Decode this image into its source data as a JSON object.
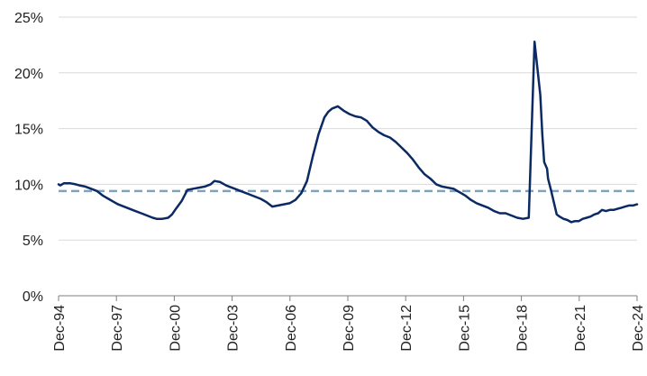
{
  "chart_data": {
    "type": "line",
    "title": "",
    "xlabel": "",
    "ylabel": "",
    "y_unit": "%",
    "ylim": [
      0,
      25
    ],
    "yticks": [
      0,
      5,
      10,
      15,
      20,
      25
    ],
    "y_tick_labels": [
      "0%",
      "5%",
      "10%",
      "15%",
      "20%",
      "25%"
    ],
    "xlim": [
      1994.917,
      2024.917
    ],
    "x_tick_labels": [
      "Dec-94",
      "Dec-97",
      "Dec-00",
      "Dec-03",
      "Dec-06",
      "Dec-09",
      "Dec-12",
      "Dec-15",
      "Dec-18",
      "Dec-21",
      "Dec-24"
    ],
    "x_tick_values": [
      1994.917,
      1997.917,
      2000.917,
      2003.917,
      2006.917,
      2009.917,
      2012.917,
      2015.917,
      2018.917,
      2021.917,
      2024.917
    ],
    "grid": "horizontal",
    "legend": "none",
    "colors": {
      "series": "#0b2a63",
      "reference": "#7fa2bd",
      "grid": "#d9d9d9",
      "axis": "#7f7f7f"
    },
    "series": [
      {
        "x": [
          1994.917,
          1995.0,
          1995.2,
          1995.5,
          1995.8,
          1996.0,
          1996.3,
          1996.6,
          1996.9,
          1997.2,
          1997.5,
          1997.8,
          1998.0,
          1998.3,
          1998.6,
          1998.9,
          1999.2,
          1999.5,
          1999.8,
          2000.0,
          2000.3,
          2000.6,
          2000.8,
          2001.0,
          2001.3,
          2001.6,
          2001.9,
          2002.2,
          2002.5,
          2002.8,
          2003.0,
          2003.3,
          2003.6,
          2003.9,
          2004.2,
          2004.5,
          2004.8,
          2005.1,
          2005.4,
          2005.7,
          2006.0,
          2006.3,
          2006.6,
          2006.9,
          2007.2,
          2007.5,
          2007.8,
          2008.1,
          2008.4,
          2008.7,
          2008.9,
          2009.1,
          2009.4,
          2009.7,
          2010.0,
          2010.3,
          2010.6,
          2010.9,
          2011.2,
          2011.5,
          2011.8,
          2012.1,
          2012.4,
          2012.7,
          2013.0,
          2013.3,
          2013.6,
          2013.9,
          2014.2,
          2014.5,
          2014.8,
          2015.1,
          2015.4,
          2015.7,
          2016.0,
          2016.3,
          2016.6,
          2016.9,
          2017.2,
          2017.5,
          2017.8,
          2018.1,
          2018.4,
          2018.7,
          2019.0,
          2019.3,
          2019.6,
          2019.9,
          2020.0,
          2020.1,
          2020.25,
          2020.3,
          2020.45,
          2020.6,
          2020.75,
          2020.9,
          2021.1,
          2021.3,
          2021.5,
          2021.7,
          2021.9,
          2022.1,
          2022.3,
          2022.5,
          2022.7,
          2022.9,
          2023.1,
          2023.3,
          2023.5,
          2023.7,
          2023.9,
          2024.1,
          2024.3,
          2024.5,
          2024.7,
          2024.917
        ],
        "values": [
          10.0,
          9.9,
          10.1,
          10.1,
          10.0,
          9.9,
          9.8,
          9.6,
          9.4,
          9.0,
          8.7,
          8.4,
          8.2,
          8.0,
          7.8,
          7.6,
          7.4,
          7.2,
          7.0,
          6.9,
          6.9,
          7.0,
          7.3,
          7.8,
          8.5,
          9.5,
          9.6,
          9.7,
          9.8,
          10.0,
          10.3,
          10.2,
          9.9,
          9.7,
          9.5,
          9.3,
          9.1,
          8.9,
          8.7,
          8.4,
          8.0,
          8.1,
          8.2,
          8.3,
          8.6,
          9.2,
          10.3,
          12.5,
          14.5,
          16.0,
          16.5,
          16.8,
          17.0,
          16.6,
          16.3,
          16.1,
          16.0,
          15.7,
          15.1,
          14.7,
          14.4,
          14.2,
          13.8,
          13.3,
          12.8,
          12.2,
          11.5,
          10.9,
          10.5,
          10.0,
          9.8,
          9.7,
          9.6,
          9.3,
          9.0,
          8.6,
          8.3,
          8.1,
          7.9,
          7.6,
          7.4,
          7.4,
          7.2,
          7.0,
          6.9,
          7.0,
          22.8,
          18.0,
          14.5,
          12.0,
          11.4,
          10.5,
          9.5,
          8.4,
          7.3,
          7.1,
          6.9,
          6.8,
          6.6,
          6.7,
          6.7,
          6.9,
          7.0,
          7.1,
          7.3,
          7.4,
          7.7,
          7.6,
          7.7,
          7.7,
          7.8,
          7.9,
          8.0,
          8.1,
          8.1,
          8.2
        ]
      }
    ],
    "reference_lines": [
      {
        "orientation": "horizontal",
        "value": 9.4,
        "style": "dashed"
      }
    ]
  }
}
